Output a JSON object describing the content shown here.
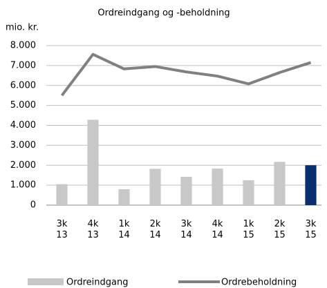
{
  "chart_data": {
    "type": "bar-line",
    "title": "Ordreindgang og -beholdning",
    "y_label": "mio. kr.",
    "categories": [
      [
        "3k",
        "13"
      ],
      [
        "4k",
        "13"
      ],
      [
        "1k",
        "14"
      ],
      [
        "2k",
        "14"
      ],
      [
        "3k",
        "14"
      ],
      [
        "4k",
        "14"
      ],
      [
        "1k",
        "15"
      ],
      [
        "2k",
        "15"
      ],
      [
        "3k",
        "15"
      ]
    ],
    "series": [
      {
        "name": "Ordreindgang",
        "type": "bar",
        "color": "#c8c8c8",
        "colors": [
          "#c8c8c8",
          "#c8c8c8",
          "#c8c8c8",
          "#c8c8c8",
          "#c8c8c8",
          "#c8c8c8",
          "#c8c8c8",
          "#c8c8c8",
          "#0a2d6e"
        ],
        "values": [
          1050,
          4280,
          800,
          1820,
          1420,
          1830,
          1250,
          2170,
          2000
        ]
      },
      {
        "name": "Ordrebeholdning",
        "type": "line",
        "color": "#808080",
        "values": [
          5500,
          7560,
          6830,
          6950,
          6680,
          6470,
          6080,
          6650,
          7150
        ]
      }
    ],
    "ylim": [
      0,
      8000
    ],
    "yticks": [
      0,
      {
        "value": 1000,
        "label": "1.000"
      },
      {
        "value": 2000,
        "label": "2.000"
      },
      {
        "value": 3000,
        "label": "3.000"
      },
      {
        "value": 4000,
        "label": "4.000"
      },
      {
        "value": 5000,
        "label": "5.000"
      },
      {
        "value": 6000,
        "label": "6.000"
      },
      {
        "value": 7000,
        "label": "7.000"
      },
      {
        "value": 8000,
        "label": "8.000"
      }
    ],
    "grid": true,
    "legend": "bottom"
  }
}
